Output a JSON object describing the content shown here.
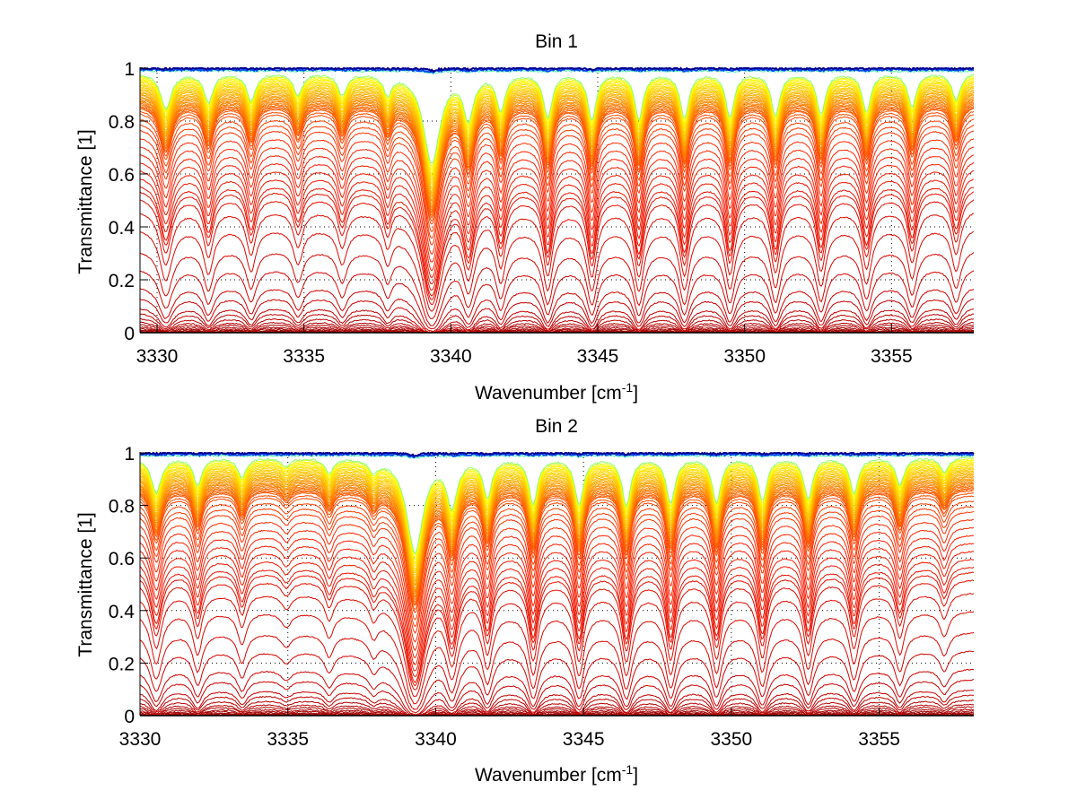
{
  "figure": {
    "background": "#ffffff"
  },
  "chart_data": [
    {
      "type": "line",
      "title": "Bin 1",
      "xlabel": "Wavenumber [cm",
      "xlabel_superscript": "-1",
      "xlabel_suffix": "]",
      "ylabel": "Transmittance [1]",
      "xlim": [
        3329.42,
        3357.8
      ],
      "ylim": [
        0,
        1
      ],
      "xticks": [
        3330,
        3335,
        3340,
        3345,
        3350,
        3355
      ],
      "xtick_labels": [
        "3330",
        "3335",
        "3340",
        "3345",
        "3350",
        "3355"
      ],
      "yticks": [
        0,
        0.2,
        0.4,
        0.6,
        0.8,
        1
      ],
      "ytick_labels": [
        "0",
        "0.2",
        "0.4",
        "0.6",
        "0.8",
        "1"
      ],
      "grid": "dotted",
      "legend": "none",
      "colormap": [
        "#00008f",
        "#0050ff",
        "#00dfff",
        "#70ff8f",
        "#ffff00",
        "#ffbf00",
        "#ff7000",
        "#ff2000",
        "#d00000",
        "#8f0000"
      ],
      "num_series": 60,
      "description": "Family of transmittance spectra; top curves near 1 (blue-yellow), descending curves (orange-dark red) with deepening absorption lines",
      "absorption_lines": [
        {
          "center": 3330.3,
          "strength": 0.55,
          "width": 0.22
        },
        {
          "center": 3331.75,
          "strength": 0.45,
          "width": 0.18
        },
        {
          "center": 3333.2,
          "strength": 0.42,
          "width": 0.18
        },
        {
          "center": 3334.8,
          "strength": 0.33,
          "width": 0.18
        },
        {
          "center": 3336.3,
          "strength": 0.33,
          "width": 0.18
        },
        {
          "center": 3337.85,
          "strength": 0.3,
          "width": 0.16
        },
        {
          "center": 3339.35,
          "strength": 1.6,
          "width": 0.3
        },
        {
          "center": 3340.6,
          "strength": 0.7,
          "width": 0.2
        },
        {
          "center": 3341.7,
          "strength": 0.55,
          "width": 0.17
        },
        {
          "center": 3343.3,
          "strength": 0.7,
          "width": 0.17
        },
        {
          "center": 3344.8,
          "strength": 0.72,
          "width": 0.17
        },
        {
          "center": 3346.4,
          "strength": 0.72,
          "width": 0.17
        },
        {
          "center": 3347.95,
          "strength": 0.7,
          "width": 0.17
        },
        {
          "center": 3349.5,
          "strength": 0.68,
          "width": 0.17
        },
        {
          "center": 3351.05,
          "strength": 0.66,
          "width": 0.17
        },
        {
          "center": 3352.6,
          "strength": 0.64,
          "width": 0.17
        },
        {
          "center": 3354.15,
          "strength": 0.6,
          "width": 0.17
        },
        {
          "center": 3355.7,
          "strength": 0.52,
          "width": 0.17
        },
        {
          "center": 3357.2,
          "strength": 0.42,
          "width": 0.17
        }
      ],
      "baseline_levels": [
        1.0,
        0.995,
        0.99,
        0.985,
        0.98,
        0.975,
        0.97,
        0.965,
        0.96,
        0.955,
        0.95,
        0.945,
        0.94,
        0.935,
        0.93,
        0.925,
        0.92,
        0.915,
        0.91,
        0.905,
        0.9,
        0.895,
        0.89,
        0.885,
        0.88,
        0.875,
        0.87,
        0.865,
        0.86,
        0.85,
        0.84,
        0.82,
        0.8,
        0.78,
        0.75,
        0.72,
        0.69,
        0.66,
        0.63,
        0.6,
        0.57,
        0.55,
        0.52,
        0.47,
        0.4,
        0.32,
        0.25,
        0.18,
        0.14,
        0.1,
        0.08,
        0.06,
        0.045,
        0.035,
        0.025,
        0.018,
        0.012,
        0.008,
        0.005,
        0.003
      ]
    },
    {
      "type": "line",
      "title": "Bin 2",
      "xlabel": "Wavenumber [cm",
      "xlabel_superscript": "-1",
      "xlabel_suffix": "]",
      "ylabel": "Transmittance [1]",
      "xlim": [
        3330.0,
        3358.2
      ],
      "ylim": [
        0,
        1
      ],
      "xticks": [
        3330,
        3335,
        3340,
        3345,
        3350,
        3355
      ],
      "xtick_labels": [
        "3330",
        "3335",
        "3340",
        "3345",
        "3350",
        "3355"
      ],
      "yticks": [
        0,
        0.2,
        0.4,
        0.6,
        0.8,
        1
      ],
      "ytick_labels": [
        "0",
        "0.2",
        "0.4",
        "0.6",
        "0.8",
        "1"
      ],
      "grid": "dotted",
      "legend": "none",
      "colormap": [
        "#00008f",
        "#0050ff",
        "#00dfff",
        "#70ff8f",
        "#ffff00",
        "#ffbf00",
        "#ff7000",
        "#ff2000",
        "#d00000",
        "#8f0000"
      ],
      "num_series": 60,
      "description": "Family of transmittance spectra; weaker lines below 3339 and strong lines above",
      "absorption_lines": [
        {
          "center": 3330.55,
          "strength": 0.55,
          "width": 0.2
        },
        {
          "center": 3331.95,
          "strength": 0.42,
          "width": 0.17
        },
        {
          "center": 3333.45,
          "strength": 0.3,
          "width": 0.17
        },
        {
          "center": 3334.95,
          "strength": 0.12,
          "width": 0.2
        },
        {
          "center": 3336.4,
          "strength": 0.22,
          "width": 0.17
        },
        {
          "center": 3337.9,
          "strength": 0.18,
          "width": 0.17
        },
        {
          "center": 3339.3,
          "strength": 1.7,
          "width": 0.3
        },
        {
          "center": 3340.55,
          "strength": 0.75,
          "width": 0.2
        },
        {
          "center": 3341.75,
          "strength": 0.6,
          "width": 0.17
        },
        {
          "center": 3343.3,
          "strength": 0.72,
          "width": 0.17
        },
        {
          "center": 3344.85,
          "strength": 0.74,
          "width": 0.17
        },
        {
          "center": 3346.45,
          "strength": 0.75,
          "width": 0.17
        },
        {
          "center": 3347.95,
          "strength": 0.72,
          "width": 0.17
        },
        {
          "center": 3349.5,
          "strength": 0.7,
          "width": 0.17
        },
        {
          "center": 3351.05,
          "strength": 0.68,
          "width": 0.17
        },
        {
          "center": 3352.6,
          "strength": 0.64,
          "width": 0.17
        },
        {
          "center": 3354.15,
          "strength": 0.55,
          "width": 0.17
        },
        {
          "center": 3355.7,
          "strength": 0.42,
          "width": 0.17
        },
        {
          "center": 3357.2,
          "strength": 0.22,
          "width": 0.17
        }
      ],
      "baseline_levels": [
        1.0,
        0.995,
        0.99,
        0.985,
        0.98,
        0.975,
        0.97,
        0.965,
        0.96,
        0.955,
        0.95,
        0.945,
        0.94,
        0.935,
        0.93,
        0.925,
        0.92,
        0.915,
        0.91,
        0.905,
        0.9,
        0.895,
        0.89,
        0.885,
        0.88,
        0.875,
        0.87,
        0.865,
        0.86,
        0.85,
        0.84,
        0.82,
        0.8,
        0.78,
        0.75,
        0.72,
        0.69,
        0.66,
        0.63,
        0.6,
        0.57,
        0.55,
        0.52,
        0.47,
        0.4,
        0.32,
        0.25,
        0.18,
        0.14,
        0.1,
        0.08,
        0.06,
        0.045,
        0.035,
        0.025,
        0.018,
        0.012,
        0.008,
        0.005,
        0.003
      ]
    }
  ]
}
